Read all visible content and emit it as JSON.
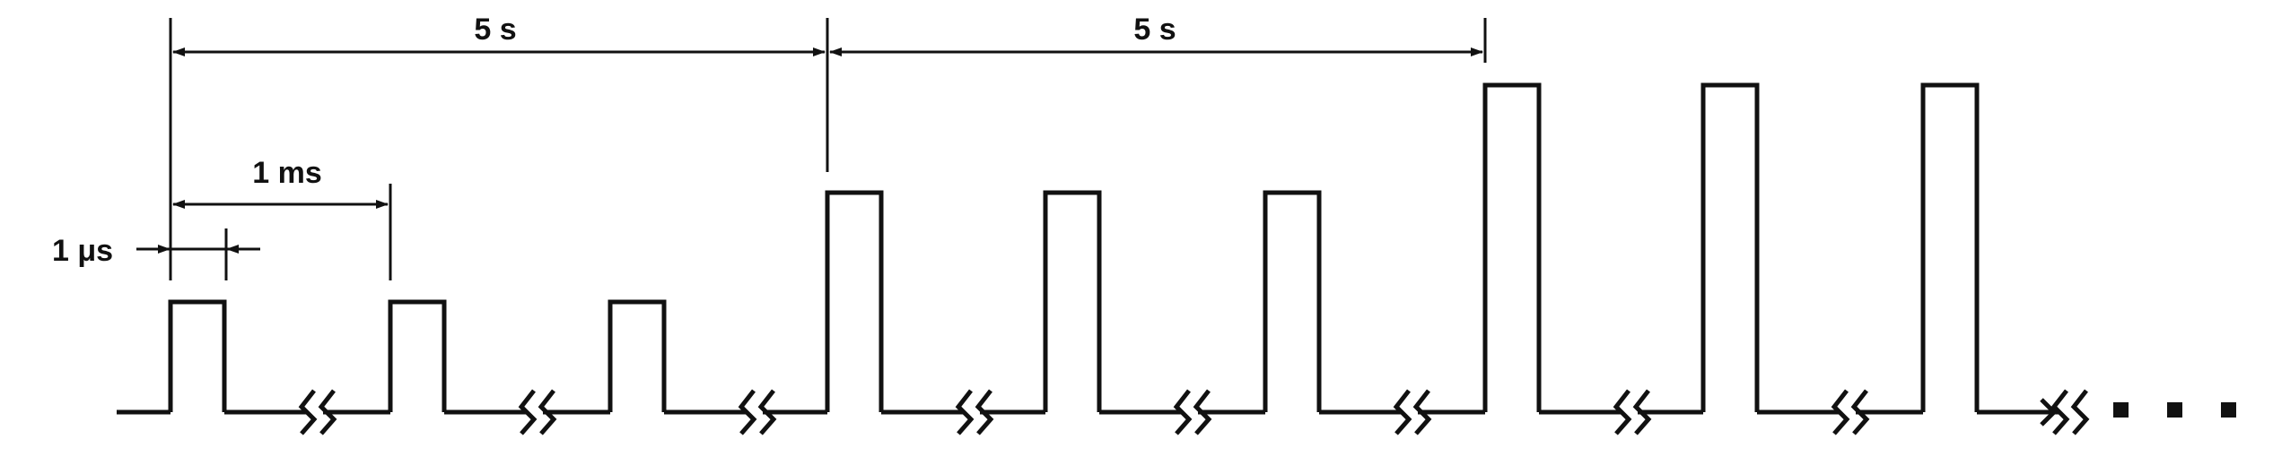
{
  "labels": {
    "period_5s_a": "5 s",
    "period_5s_b": "5 s",
    "period_1ms": "1 ms",
    "width_1us": "1 μs",
    "continuation": "..."
  },
  "colors": {
    "stroke": "#111111",
    "background": "#ffffff"
  },
  "structure": {
    "groups": 3,
    "pulses_per_group": 3,
    "pulse_levels": [
      "low",
      "medium",
      "high"
    ],
    "breaks_between_pulses": "zigzag"
  }
}
